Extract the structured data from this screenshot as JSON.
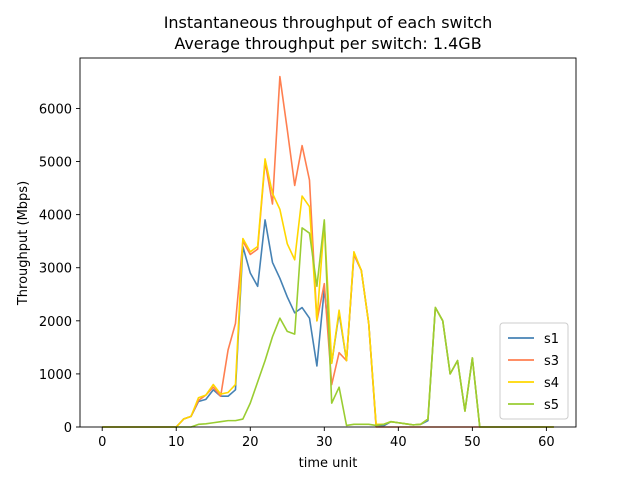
{
  "chart_data": {
    "type": "line",
    "title": "Instantaneous throughput of each switch",
    "subtitle": "Average throughput per switch: 1.4GB",
    "xlabel": "time unit",
    "ylabel": "Throughput (Mbps)",
    "xlim": [
      -3,
      64
    ],
    "ylim": [
      0,
      6950
    ],
    "xticks": [
      0,
      10,
      20,
      30,
      40,
      50,
      60
    ],
    "yticks": [
      0,
      1000,
      2000,
      3000,
      4000,
      5000,
      6000
    ],
    "legend_position": "lower-right",
    "grid": false,
    "x": [
      0,
      1,
      2,
      3,
      4,
      5,
      6,
      7,
      8,
      9,
      10,
      11,
      12,
      13,
      14,
      15,
      16,
      17,
      18,
      19,
      20,
      21,
      22,
      23,
      24,
      25,
      26,
      27,
      28,
      29,
      30,
      31,
      32,
      33,
      34,
      35,
      36,
      37,
      38,
      39,
      40,
      41,
      42,
      43,
      44,
      45,
      46,
      47,
      48,
      49,
      50,
      51,
      52,
      53,
      54,
      55,
      56,
      57,
      58,
      59,
      60,
      61
    ],
    "series": [
      {
        "name": "s1",
        "color": "#4682b4",
        "values": [
          0,
          0,
          0,
          0,
          0,
          0,
          0,
          0,
          0,
          0,
          0,
          150,
          200,
          480,
          520,
          700,
          580,
          580,
          700,
          3400,
          2900,
          2650,
          3900,
          3100,
          2800,
          2450,
          2150,
          2250,
          2050,
          1150,
          2600,
          1200,
          2150,
          1250,
          3250,
          2950,
          1950,
          30,
          20,
          100,
          80,
          60,
          40,
          50,
          120,
          2250,
          2000,
          1000,
          1250,
          300,
          1300,
          0,
          0,
          0,
          0,
          0,
          0,
          0,
          0,
          0,
          0,
          0
        ]
      },
      {
        "name": "s3",
        "color": "#ff7f50",
        "values": [
          0,
          0,
          0,
          0,
          0,
          0,
          0,
          0,
          0,
          0,
          0,
          150,
          200,
          500,
          600,
          750,
          580,
          1450,
          1950,
          3500,
          3250,
          3350,
          5000,
          4200,
          6600,
          5600,
          4550,
          5300,
          4650,
          2000,
          2700,
          800,
          1400,
          1250,
          3250,
          2950,
          1950,
          0,
          0,
          0,
          0,
          0,
          0,
          0,
          0,
          0,
          0,
          0,
          0,
          0,
          0,
          0,
          0,
          0,
          0,
          0,
          0,
          0,
          0,
          0,
          0,
          0
        ]
      },
      {
        "name": "s4",
        "color": "#ffd700",
        "values": [
          0,
          0,
          0,
          0,
          0,
          0,
          0,
          0,
          0,
          0,
          0,
          150,
          200,
          550,
          600,
          800,
          620,
          650,
          800,
          3550,
          3300,
          3400,
          5050,
          4400,
          4100,
          3450,
          3150,
          4350,
          4150,
          2000,
          3850,
          1200,
          2200,
          1250,
          3300,
          2950,
          1950,
          50,
          50,
          100,
          80,
          60,
          40,
          50,
          150,
          2250,
          2000,
          1000,
          1250,
          300,
          1300,
          0,
          0,
          0,
          0,
          0,
          0,
          0,
          0,
          0,
          0,
          0
        ]
      },
      {
        "name": "s5",
        "color": "#9acd32",
        "values": [
          0,
          0,
          0,
          0,
          0,
          0,
          0,
          0,
          0,
          0,
          0,
          0,
          0,
          50,
          60,
          80,
          100,
          120,
          120,
          150,
          450,
          850,
          1250,
          1700,
          2050,
          1800,
          1750,
          3750,
          3650,
          2650,
          3900,
          450,
          750,
          30,
          50,
          50,
          50,
          30,
          50,
          100,
          80,
          60,
          40,
          50,
          150,
          2250,
          2000,
          1000,
          1250,
          300,
          1300,
          0,
          0,
          0,
          0,
          0,
          0,
          0,
          0,
          0,
          0,
          0
        ]
      }
    ]
  }
}
